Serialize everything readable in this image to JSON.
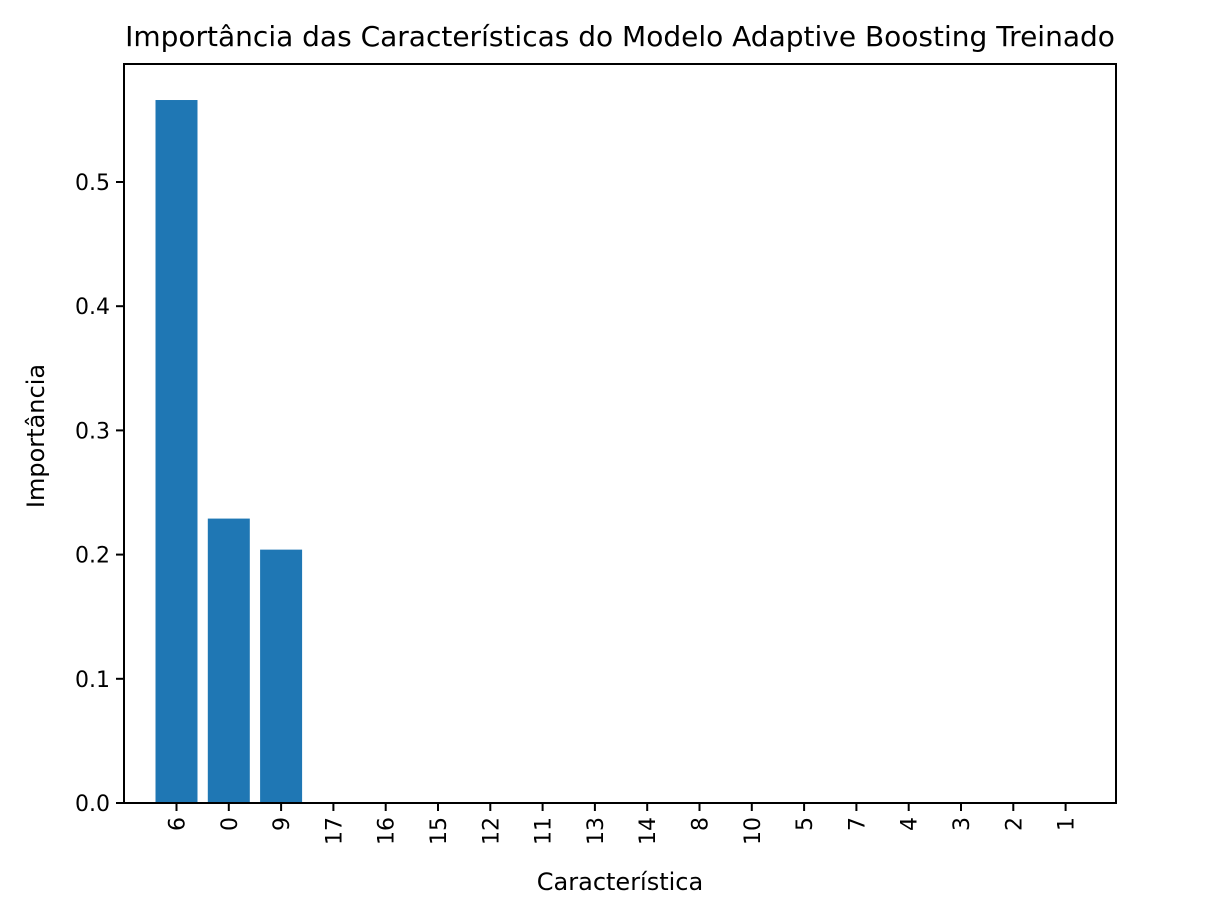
{
  "chart_data": {
    "type": "bar",
    "title": "Importância das Características do Modelo Adaptive Boosting Treinado",
    "xlabel": "Característica",
    "ylabel": "Importância",
    "categories": [
      "6",
      "0",
      "9",
      "17",
      "16",
      "15",
      "12",
      "11",
      "13",
      "14",
      "8",
      "10",
      "5",
      "7",
      "4",
      "3",
      "2",
      "1"
    ],
    "values": [
      0.566,
      0.229,
      0.204,
      0,
      0,
      0,
      0,
      0,
      0,
      0,
      0,
      0,
      0,
      0,
      0,
      0,
      0,
      0
    ],
    "ylim": [
      0,
      0.595
    ],
    "yticks": [
      0.0,
      0.1,
      0.2,
      0.3,
      0.4,
      0.5
    ],
    "ytick_labels": [
      "0.0",
      "0.1",
      "0.2",
      "0.3",
      "0.4",
      "0.5"
    ],
    "xtick_rotation": "vertical",
    "grid": false,
    "legend": "none",
    "bar_color": "#1f77b4"
  }
}
